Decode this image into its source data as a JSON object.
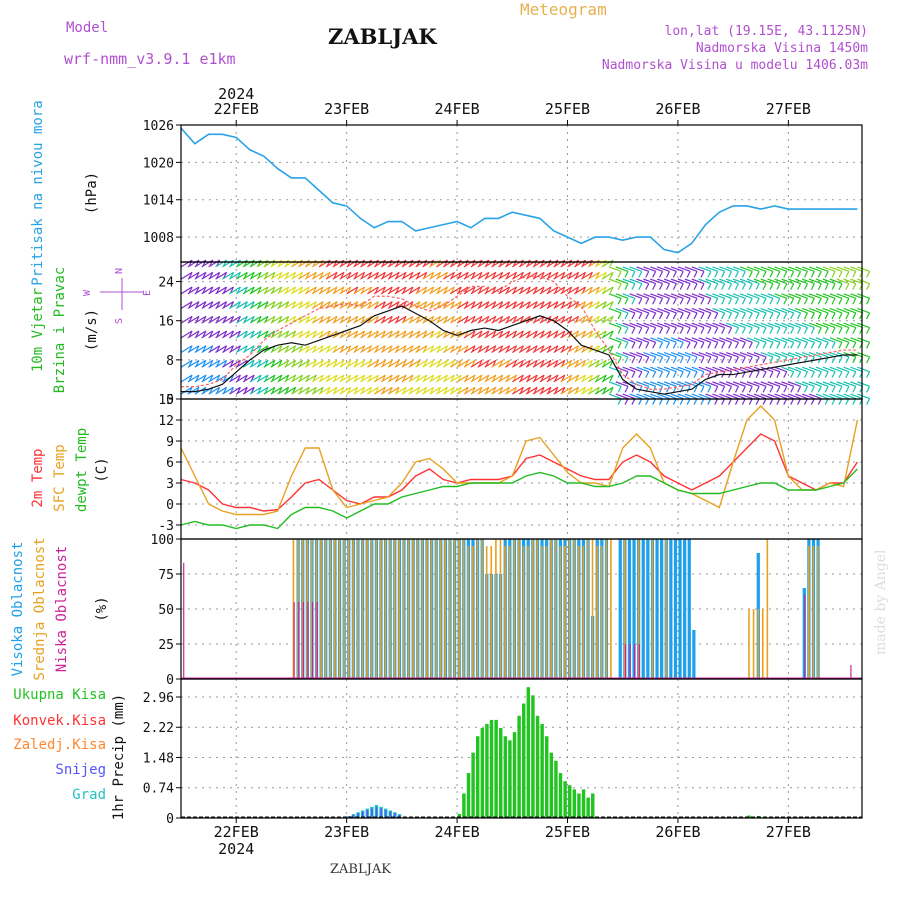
{
  "header": {
    "model_label": "Model",
    "model_name": "wrf-nmm_v3.9.1  e1km",
    "station": "ZABLJAK",
    "product": "Meteogram",
    "coords": "lon,lat (19.15E, 43.1125N)",
    "elevation": "Nadmorska Visina 1450m",
    "model_elevation": "Nadmorska Visina u modelu 1406.03m",
    "footer_station": "ZABLJAK",
    "watermark": "made by Angel"
  },
  "colors": {
    "pressure": "#29a3e6",
    "t2m": "#ff3333",
    "sfc": "#e8a020",
    "dewpt": "#22bb22",
    "cloud_high": "#1ea0ea",
    "cloud_mid": "#e8a020",
    "cloud_low": "#cc2299",
    "precip_total": "#22c422",
    "precip_conv": "#ff3333",
    "precip_frozen": "#ff8833",
    "snow": "#5555ff",
    "graupel": "#22c4c4",
    "header_purple": "#b050d0",
    "header_orange": "#e8b050"
  },
  "chart_data": [
    {
      "type": "line",
      "name": "pressure",
      "ylabel": [
        "Pritisak na nivou mora",
        "(hPa)"
      ],
      "ylim": [
        1004,
        1026
      ],
      "yticks": [
        1008,
        1014,
        1020,
        1026
      ],
      "year_label": "2024",
      "days": [
        "22FEB",
        "23FEB",
        "24FEB",
        "25FEB",
        "26FEB",
        "27FEB"
      ],
      "x": [
        0,
        3,
        6,
        9,
        12,
        15,
        18,
        21,
        24,
        27,
        30,
        33,
        36,
        39,
        42,
        45,
        48,
        51,
        54,
        57,
        60,
        63,
        66,
        69,
        72,
        75,
        78,
        81,
        84,
        87,
        90,
        93,
        96,
        99,
        102,
        105,
        108,
        111,
        114,
        117,
        120,
        123,
        126,
        129,
        132,
        135,
        138,
        141,
        144,
        147
      ],
      "values": [
        1025.5,
        1023,
        1024.5,
        1024.5,
        1024,
        1022,
        1021,
        1019,
        1017.5,
        1017.5,
        1015.5,
        1013.5,
        1013,
        1011,
        1009.5,
        1010.5,
        1010.5,
        1009,
        1009.5,
        1010,
        1010.5,
        1009.5,
        1011,
        1011,
        1012,
        1011.5,
        1011,
        1009,
        1008,
        1007,
        1008,
        1008,
        1007.5,
        1008,
        1008,
        1006,
        1005.5,
        1007,
        1010,
        1012,
        1013,
        1013,
        1012.5,
        1013,
        1012.5,
        1012.5,
        1012.5,
        1012.5,
        1012.5,
        1012.5
      ]
    },
    {
      "type": "line",
      "name": "wind",
      "ylabel": [
        "10m Vjetar",
        "Brzina i Pravac",
        "(m/s)"
      ],
      "compass": [
        "N",
        "E",
        "W",
        "S"
      ],
      "ylim": [
        0,
        28
      ],
      "yticks": [
        0,
        8,
        16,
        24
      ],
      "series": [
        {
          "values": [
            1.5,
            1.5,
            2,
            3,
            5.5,
            8,
            10,
            11,
            11.5,
            11,
            12,
            13,
            14,
            15,
            17,
            18,
            19,
            17.5,
            16,
            14,
            13,
            14,
            14.5,
            14,
            15,
            16,
            17,
            16,
            14,
            11,
            10,
            9,
            4,
            2,
            1.5,
            1,
            1.5,
            2,
            4,
            5,
            5,
            5.5,
            6,
            6.5,
            7,
            7.5,
            8,
            8.5,
            9,
            9
          ]
        },
        {
          "values": [
            2.5,
            2.5,
            3,
            4,
            7,
            9,
            12,
            14,
            15.5,
            17,
            18.5,
            19,
            19.5,
            19,
            21,
            21,
            20.5,
            19,
            18,
            19,
            21,
            23,
            23,
            22,
            24,
            25,
            25,
            24,
            21,
            19,
            14,
            10,
            5,
            3,
            2,
            2,
            2.5,
            3,
            5,
            5.5,
            6,
            6.5,
            7,
            7.5,
            8,
            8.5,
            9,
            9.5,
            10,
            10
          ]
        }
      ]
    },
    {
      "type": "line",
      "name": "temperature",
      "ylabel": [
        "2m Temp",
        "SFC Temp",
        "dewpt Temp",
        "(C)"
      ],
      "ylim": [
        -5,
        15
      ],
      "yticks": [
        -3,
        0,
        3,
        6,
        9,
        12,
        15
      ],
      "series": [
        {
          "name": "2m Temp",
          "values": [
            3.5,
            3,
            2,
            0,
            -0.5,
            -0.5,
            -1,
            -0.8,
            1,
            3,
            3.5,
            2,
            0.5,
            0,
            1,
            1,
            2,
            4,
            5,
            3.5,
            3,
            3.5,
            3.5,
            3.5,
            4,
            6.5,
            7,
            6,
            5,
            4,
            3.5,
            3.5,
            6,
            7,
            6,
            4,
            3,
            2,
            3,
            4,
            6,
            8,
            10,
            9,
            4,
            3,
            2,
            3,
            3,
            6
          ]
        },
        {
          "name": "SFC Temp",
          "values": [
            8,
            4,
            0,
            -1,
            -1.5,
            -1.5,
            -1.5,
            -1,
            4,
            8,
            8,
            2,
            -0.5,
            0,
            0.5,
            1,
            3,
            6,
            6.5,
            5,
            3,
            3,
            3,
            3,
            4,
            9,
            9.5,
            7,
            4.5,
            3,
            3,
            2.5,
            8,
            10,
            8,
            3,
            2,
            1.5,
            0.5,
            -0.5,
            6,
            12,
            14,
            12,
            4,
            2,
            2,
            3,
            2.5,
            12
          ]
        },
        {
          "name": "dewpt Temp",
          "values": [
            -3,
            -2.5,
            -3,
            -3,
            -3.5,
            -3,
            -3,
            -3.5,
            -1.5,
            -0.5,
            -0.5,
            -1,
            -2,
            -1,
            0,
            0,
            1,
            1.5,
            2,
            2.5,
            2.5,
            3,
            3,
            3,
            3,
            4,
            4.5,
            4,
            3,
            3,
            2.5,
            2.5,
            3,
            4,
            4,
            3,
            2,
            1.5,
            1.5,
            1.5,
            2,
            2.5,
            3,
            3,
            2,
            2,
            2,
            2.5,
            3,
            5
          ]
        }
      ]
    },
    {
      "type": "bar",
      "name": "clouds",
      "ylabel": [
        "Visoka Oblacnost",
        "Srednja Oblacnost",
        "Niska Oblacnost",
        "(%)"
      ],
      "ylim": [
        0,
        100
      ],
      "yticks": [
        0,
        25,
        50,
        75,
        100
      ]
    },
    {
      "type": "bar",
      "name": "precip",
      "legend": [
        "Ukupna Kisa",
        "Konvek.Kisa",
        "Zaledj.Kisa",
        "Snijeg",
        "Grad"
      ],
      "ylabel": [
        "1hr Precip (mm)"
      ],
      "ylim": [
        0,
        3.4
      ],
      "yticks": [
        0,
        0.74,
        1.48,
        2.22,
        2.96
      ]
    }
  ]
}
